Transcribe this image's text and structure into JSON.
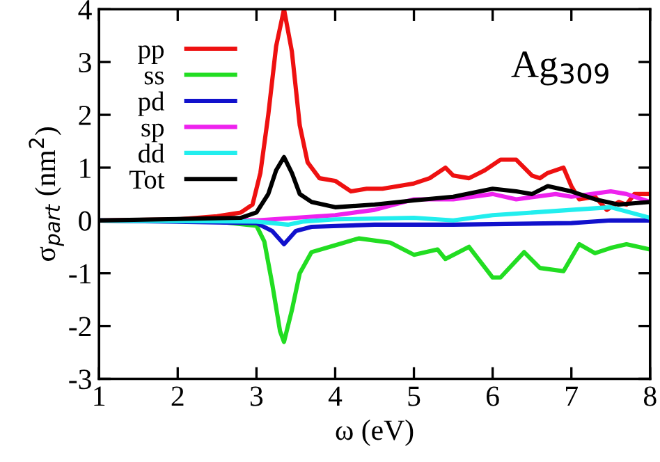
{
  "chart_data": {
    "type": "line",
    "xlabel": "ω (eV)",
    "ylabel": "σ$_{part}$ (nm$^{2}$)",
    "annotations": [
      "Ag$_{309}$"
    ],
    "xlim": [
      1,
      8
    ],
    "ylim": [
      -3,
      4
    ],
    "xticks": [
      1,
      2,
      3,
      4,
      5,
      6,
      7,
      8
    ],
    "yticks": [
      -3,
      -2,
      -1,
      0,
      1,
      2,
      3,
      4
    ],
    "grid": false,
    "legend": "top left",
    "marker": "none",
    "line_style": "solid",
    "series": [
      {
        "name": "pp",
        "color": "#ee1111",
        "x": [
          1,
          2,
          2.5,
          2.8,
          2.95,
          3.05,
          3.15,
          3.25,
          3.35,
          3.45,
          3.55,
          3.65,
          3.8,
          4.0,
          4.2,
          4.4,
          4.6,
          4.8,
          5.0,
          5.2,
          5.4,
          5.5,
          5.7,
          5.9,
          6.1,
          6.3,
          6.5,
          6.6,
          6.7,
          6.9,
          7.0,
          7.1,
          7.3,
          7.45,
          7.6,
          7.7,
          7.8,
          8.0
        ],
        "values": [
          0,
          0.02,
          0.08,
          0.15,
          0.3,
          0.9,
          2.0,
          3.3,
          4.0,
          3.2,
          1.8,
          1.1,
          0.8,
          0.75,
          0.55,
          0.6,
          0.6,
          0.65,
          0.7,
          0.8,
          1.0,
          0.85,
          0.8,
          0.95,
          1.15,
          1.15,
          0.85,
          0.8,
          0.9,
          1.0,
          0.65,
          0.4,
          0.45,
          0.2,
          0.35,
          0.3,
          0.5,
          0.5
        ]
      },
      {
        "name": "ss",
        "color": "#22dd22",
        "x": [
          1,
          2.5,
          3.0,
          3.1,
          3.2,
          3.3,
          3.35,
          3.45,
          3.55,
          3.7,
          4.0,
          4.3,
          4.7,
          5.0,
          5.3,
          5.4,
          5.7,
          6.0,
          6.1,
          6.4,
          6.6,
          6.9,
          7.1,
          7.3,
          7.5,
          7.7,
          8.0
        ],
        "values": [
          0,
          -0.02,
          -0.1,
          -0.4,
          -1.2,
          -2.1,
          -2.3,
          -1.7,
          -1.0,
          -0.6,
          -0.47,
          -0.34,
          -0.42,
          -0.65,
          -0.55,
          -0.73,
          -0.5,
          -1.08,
          -1.08,
          -0.6,
          -0.9,
          -0.96,
          -0.45,
          -0.62,
          -0.52,
          -0.45,
          -0.55
        ]
      },
      {
        "name": "pd",
        "color": "#1111cc",
        "x": [
          1,
          3.0,
          3.2,
          3.35,
          3.5,
          3.7,
          4.5,
          5.5,
          7.0,
          7.5,
          8.0
        ],
        "values": [
          0,
          -0.05,
          -0.2,
          -0.45,
          -0.2,
          -0.12,
          -0.08,
          -0.08,
          -0.05,
          0.0,
          0.0
        ]
      },
      {
        "name": "sp",
        "color": "#ee22ee",
        "x": [
          1,
          3.0,
          3.5,
          4.0,
          4.5,
          5.0,
          5.5,
          6.0,
          6.3,
          6.8,
          7.0,
          7.5,
          7.7,
          8.0
        ],
        "values": [
          0,
          0,
          0.05,
          0.1,
          0.2,
          0.4,
          0.4,
          0.5,
          0.4,
          0.5,
          0.45,
          0.55,
          0.5,
          0.35
        ]
      },
      {
        "name": "dd",
        "color": "#22eeee",
        "x": [
          1,
          3.0,
          3.4,
          3.6,
          4.0,
          5.0,
          5.5,
          6.0,
          7.0,
          7.5,
          8.0
        ],
        "values": [
          0,
          -0.02,
          -0.08,
          -0.02,
          0.02,
          0.05,
          0.0,
          0.1,
          0.2,
          0.25,
          0.05
        ]
      },
      {
        "name": "Tot",
        "color": "#000000",
        "x": [
          1,
          2.8,
          3.0,
          3.15,
          3.25,
          3.35,
          3.45,
          3.55,
          3.7,
          4.0,
          4.5,
          5.0,
          5.5,
          6.0,
          6.3,
          6.5,
          6.7,
          7.0,
          7.3,
          7.6,
          8.0
        ],
        "values": [
          0,
          0.05,
          0.15,
          0.5,
          0.95,
          1.2,
          0.9,
          0.5,
          0.35,
          0.25,
          0.3,
          0.38,
          0.45,
          0.6,
          0.55,
          0.5,
          0.65,
          0.55,
          0.4,
          0.3,
          0.35
        ]
      }
    ]
  }
}
